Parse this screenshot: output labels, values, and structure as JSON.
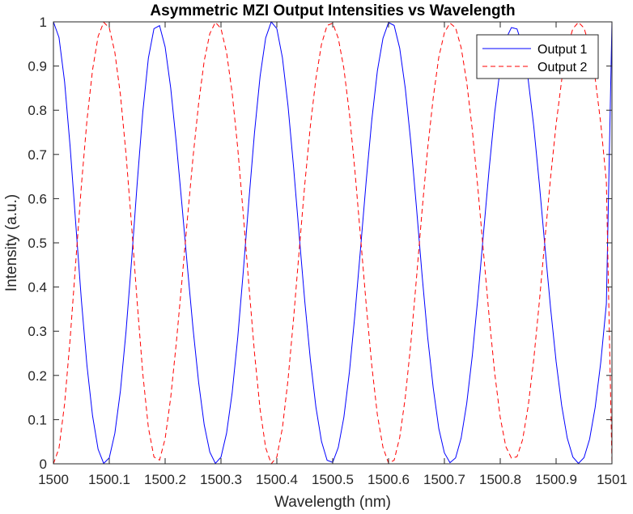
{
  "chart_data": {
    "type": "line",
    "title": "Asymmetric MZI Output Intensities vs Wavelength",
    "xlabel": "Wavelength (nm)",
    "ylabel": "Intensity (a.u.)",
    "xlim": [
      1500,
      1501
    ],
    "ylim": [
      0,
      1
    ],
    "xticks": [
      1500,
      1500.1,
      1500.2,
      1500.3,
      1500.4,
      1500.5,
      1500.6,
      1500.7,
      1500.8,
      1500.9,
      1501
    ],
    "xtick_labels": [
      "1500",
      "1500.1",
      "1500.2",
      "1500.3",
      "1500.4",
      "1500.5",
      "1500.6",
      "1500.7",
      "1500.8",
      "1500.9",
      "1501"
    ],
    "yticks": [
      0,
      0.1,
      0.2,
      0.3,
      0.4,
      0.5,
      0.6,
      0.7,
      0.8,
      0.9,
      1
    ],
    "ytick_labels": [
      "0",
      "0.1",
      "0.2",
      "0.3",
      "0.4",
      "0.5",
      "0.6",
      "0.7",
      "0.8",
      "0.9",
      "1"
    ],
    "grid": false,
    "legend_position": "top-right",
    "curve_model": "Output 1 = cos^2(pi*(x-1500)/0.1667); Output 2 = 1 - Output 1; sampled every 0.01 nm",
    "series": [
      {
        "name": "Output 1",
        "color": "#0000ff",
        "line_style": "solid",
        "x": [
          1500,
          1500.01,
          1500.02,
          1500.03,
          1500.04,
          1500.05,
          1500.06,
          1500.07,
          1500.08,
          1500.09,
          1500.1,
          1500.11,
          1500.12,
          1500.13,
          1500.14,
          1500.15,
          1500.16,
          1500.17,
          1500.18,
          1500.19,
          1500.2,
          1500.21,
          1500.22,
          1500.23,
          1500.24,
          1500.25,
          1500.26,
          1500.27,
          1500.28,
          1500.29,
          1500.3,
          1500.31,
          1500.32,
          1500.33,
          1500.34,
          1500.35,
          1500.36,
          1500.37,
          1500.38,
          1500.39,
          1500.4,
          1500.41,
          1500.42,
          1500.43,
          1500.44,
          1500.45,
          1500.46,
          1500.47,
          1500.48,
          1500.49,
          1500.5,
          1500.51,
          1500.52,
          1500.53,
          1500.54,
          1500.55,
          1500.56,
          1500.57,
          1500.58,
          1500.59,
          1500.6,
          1500.61,
          1500.62,
          1500.63,
          1500.64,
          1500.65,
          1500.66,
          1500.67,
          1500.68,
          1500.69,
          1500.7,
          1500.71,
          1500.72,
          1500.73,
          1500.74,
          1500.75,
          1500.76,
          1500.77,
          1500.78,
          1500.79,
          1500.8,
          1500.81,
          1500.82,
          1500.83,
          1500.84,
          1500.85,
          1500.86,
          1500.87,
          1500.88,
          1500.89,
          1500.9,
          1500.91,
          1500.92,
          1500.93,
          1500.94,
          1500.95,
          1500.96,
          1500.97,
          1500.98,
          1500.99,
          1501
        ],
        "values": [
          1.0,
          0.9646,
          0.8644,
          0.7162,
          0.5431,
          0.3713,
          0.2232,
          0.1092,
          0.0329,
          0.001,
          0.0135,
          0.0692,
          0.1656,
          0.2996,
          0.4611,
          0.635,
          0.7959,
          0.918,
          0.9846,
          0.9915,
          0.9433,
          0.8501,
          0.7264,
          0.5874,
          0.444,
          0.3058,
          0.1842,
          0.0881,
          0.0266,
          0.001,
          0.0151,
          0.0693,
          0.1605,
          0.2859,
          0.4364,
          0.5964,
          0.7492,
          0.8765,
          0.9637,
          0.9999,
          0.9846,
          0.9188,
          0.8101,
          0.671,
          0.5176,
          0.3681,
          0.2361,
          0.1281,
          0.0505,
          0.008,
          0.0032,
          0.037,
          0.1052,
          0.2082,
          0.3402,
          0.4888,
          0.6398,
          0.7778,
          0.8891,
          0.9627,
          0.9984,
          0.992,
          0.9402,
          0.8495,
          0.7261,
          0.5803,
          0.4276,
          0.2871,
          0.1719,
          0.0796,
          0.0248,
          0.0026,
          0.0133,
          0.0583,
          0.1367,
          0.245,
          0.377,
          0.5215,
          0.6654,
          0.794,
          0.8954,
          0.9611,
          0.9871,
          0.984,
          0.9456,
          0.8696,
          0.7637,
          0.6333,
          0.4917,
          0.3539,
          0.2318,
          0.1317,
          0.0581,
          0.0154,
          0.0009,
          0.0139,
          0.0559,
          0.128,
          0.2302,
          0.3618,
          1.0
        ]
      },
      {
        "name": "Output 2",
        "color": "#ff0000",
        "line_style": "dashed",
        "x": [
          1500,
          1500.01,
          1500.02,
          1500.03,
          1500.04,
          1500.05,
          1500.06,
          1500.07,
          1500.08,
          1500.09,
          1500.1,
          1500.11,
          1500.12,
          1500.13,
          1500.14,
          1500.15,
          1500.16,
          1500.17,
          1500.18,
          1500.19,
          1500.2,
          1500.21,
          1500.22,
          1500.23,
          1500.24,
          1500.25,
          1500.26,
          1500.27,
          1500.28,
          1500.29,
          1500.3,
          1500.31,
          1500.32,
          1500.33,
          1500.34,
          1500.35,
          1500.36,
          1500.37,
          1500.38,
          1500.39,
          1500.4,
          1500.41,
          1500.42,
          1500.43,
          1500.44,
          1500.45,
          1500.46,
          1500.47,
          1500.48,
          1500.49,
          1500.5,
          1500.51,
          1500.52,
          1500.53,
          1500.54,
          1500.55,
          1500.56,
          1500.57,
          1500.58,
          1500.59,
          1500.6,
          1500.61,
          1500.62,
          1500.63,
          1500.64,
          1500.65,
          1500.66,
          1500.67,
          1500.68,
          1500.69,
          1500.7,
          1500.71,
          1500.72,
          1500.73,
          1500.74,
          1500.75,
          1500.76,
          1500.77,
          1500.78,
          1500.79,
          1500.8,
          1500.81,
          1500.82,
          1500.83,
          1500.84,
          1500.85,
          1500.86,
          1500.87,
          1500.88,
          1500.89,
          1500.9,
          1500.91,
          1500.92,
          1500.93,
          1500.94,
          1500.95,
          1500.96,
          1500.97,
          1500.98,
          1500.99,
          1501
        ],
        "values": [
          0.0,
          0.0354,
          0.1356,
          0.2838,
          0.4569,
          0.6287,
          0.7768,
          0.8908,
          0.9671,
          0.999,
          0.9865,
          0.9308,
          0.8344,
          0.7004,
          0.5389,
          0.365,
          0.2041,
          0.082,
          0.0154,
          0.0085,
          0.0567,
          0.1499,
          0.2736,
          0.4126,
          0.556,
          0.6942,
          0.8158,
          0.9119,
          0.9734,
          0.999,
          0.9849,
          0.9307,
          0.8395,
          0.7141,
          0.5636,
          0.4036,
          0.2508,
          0.1235,
          0.0363,
          0.0001,
          0.0154,
          0.0812,
          0.1899,
          0.329,
          0.4824,
          0.6319,
          0.7639,
          0.8719,
          0.9495,
          0.992,
          0.9968,
          0.963,
          0.8948,
          0.7918,
          0.6598,
          0.5112,
          0.3602,
          0.2222,
          0.1109,
          0.0373,
          0.0016,
          0.008,
          0.0598,
          0.1505,
          0.2739,
          0.4197,
          0.5724,
          0.7129,
          0.8281,
          0.9204,
          0.9752,
          0.9974,
          0.9867,
          0.9417,
          0.8633,
          0.755,
          0.623,
          0.4785,
          0.3346,
          0.206,
          0.1046,
          0.0389,
          0.0129,
          0.016,
          0.0544,
          0.1304,
          0.2363,
          0.3667,
          0.5083,
          0.6461,
          0.7682,
          0.8683,
          0.9419,
          0.9846,
          0.9991,
          0.9861,
          0.9441,
          0.872,
          0.7698,
          0.6382,
          0.0
        ]
      }
    ]
  }
}
